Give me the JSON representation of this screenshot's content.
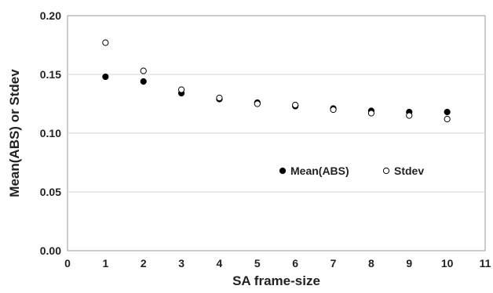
{
  "chart_data": {
    "type": "scatter",
    "title": "",
    "xlabel": "SA frame-size",
    "ylabel": "Mean(ABS) or Stdev",
    "xlim": [
      0,
      11
    ],
    "ylim": [
      0,
      0.2
    ],
    "xticks": [
      0,
      1,
      2,
      3,
      4,
      5,
      6,
      7,
      8,
      9,
      10,
      11
    ],
    "yticks": [
      0.0,
      0.05,
      0.1,
      0.15,
      0.2
    ],
    "ytick_labels": [
      "0.00",
      "0.05",
      "0.10",
      "0.15",
      "0.20"
    ],
    "grid": "horizontal",
    "legend_position": "center-right",
    "series": [
      {
        "name": "Mean(ABS)",
        "marker": "filled-circle",
        "color": "#000000",
        "x": [
          1,
          2,
          3,
          4,
          5,
          6,
          7,
          8,
          9,
          10
        ],
        "y": [
          0.148,
          0.144,
          0.134,
          0.129,
          0.126,
          0.123,
          0.121,
          0.119,
          0.118,
          0.118
        ]
      },
      {
        "name": "Stdev",
        "marker": "open-circle",
        "color": "#000000",
        "x": [
          1,
          2,
          3,
          4,
          5,
          6,
          7,
          8,
          9,
          10
        ],
        "y": [
          0.177,
          0.153,
          0.137,
          0.13,
          0.125,
          0.124,
          0.12,
          0.117,
          0.115,
          0.112
        ]
      }
    ]
  }
}
